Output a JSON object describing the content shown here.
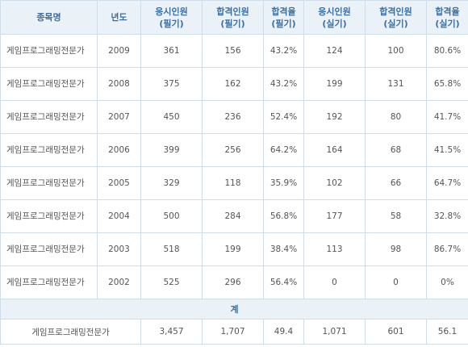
{
  "headers": [
    {
      "l1": "종목명",
      "l2": ""
    },
    {
      "l1": "년도",
      "l2": ""
    },
    {
      "l1": "응시인원",
      "l2": "(필기)"
    },
    {
      "l1": "합격인원",
      "l2": "(필기)"
    },
    {
      "l1": "합격율",
      "l2": "(필기)"
    },
    {
      "l1": "응시인원",
      "l2": "(실기)"
    },
    {
      "l1": "합격인원",
      "l2": "(실기)"
    },
    {
      "l1": "합격율",
      "l2": "(실기)"
    }
  ],
  "rows": [
    {
      "name": "게임프로그래밍전문가",
      "year": "2009",
      "w_app": "361",
      "w_pass": "156",
      "w_rate": "43.2%",
      "p_app": "124",
      "p_pass": "100",
      "p_rate": "80.6%"
    },
    {
      "name": "게임프로그래밍전문가",
      "year": "2008",
      "w_app": "375",
      "w_pass": "162",
      "w_rate": "43.2%",
      "p_app": "199",
      "p_pass": "131",
      "p_rate": "65.8%"
    },
    {
      "name": "게임프로그래밍전문가",
      "year": "2007",
      "w_app": "450",
      "w_pass": "236",
      "w_rate": "52.4%",
      "p_app": "192",
      "p_pass": "80",
      "p_rate": "41.7%"
    },
    {
      "name": "게임프로그래밍전문가",
      "year": "2006",
      "w_app": "399",
      "w_pass": "256",
      "w_rate": "64.2%",
      "p_app": "164",
      "p_pass": "68",
      "p_rate": "41.5%"
    },
    {
      "name": "게임프로그래밍전문가",
      "year": "2005",
      "w_app": "329",
      "w_pass": "118",
      "w_rate": "35.9%",
      "p_app": "102",
      "p_pass": "66",
      "p_rate": "64.7%"
    },
    {
      "name": "게임프로그래밍전문가",
      "year": "2004",
      "w_app": "500",
      "w_pass": "284",
      "w_rate": "56.8%",
      "p_app": "177",
      "p_pass": "58",
      "p_rate": "32.8%"
    },
    {
      "name": "게임프로그래밍전문가",
      "year": "2003",
      "w_app": "518",
      "w_pass": "199",
      "w_rate": "38.4%",
      "p_app": "113",
      "p_pass": "98",
      "p_rate": "86.7%"
    },
    {
      "name": "게임프로그래밍전문가",
      "year": "2002",
      "w_app": "525",
      "w_pass": "296",
      "w_rate": "56.4%",
      "p_app": "0",
      "p_pass": "0",
      "p_rate": "0%"
    }
  ],
  "total": {
    "label": "계",
    "name": "게임프로그래밍전문가",
    "w_app": "3,457",
    "w_pass": "1,707",
    "w_rate": "49.4",
    "p_app": "1,071",
    "p_pass": "601",
    "p_rate": "56.1"
  }
}
